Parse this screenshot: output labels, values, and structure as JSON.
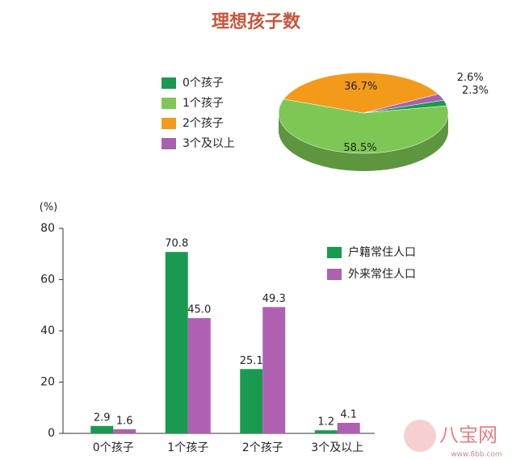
{
  "chart_data": [
    {
      "type": "pie",
      "title": "理想孩子数",
      "categories": [
        "0个孩子",
        "1个孩子",
        "2个孩子",
        "3个及以上"
      ],
      "values": [
        2.3,
        58.5,
        36.7,
        2.6
      ],
      "value_labels": [
        "2.3%",
        "58.5%",
        "36.7%",
        "2.6%"
      ],
      "colors": [
        "#1a9a50",
        "#7dc855",
        "#f39a1a",
        "#a860ac"
      ]
    },
    {
      "type": "bar",
      "y_label": "(%)",
      "categories": [
        "0个孩子",
        "1个孩子",
        "2个孩子",
        "3个及以上"
      ],
      "series": [
        {
          "name": "户籍常住人口",
          "color": "#1a9a50",
          "values": [
            2.9,
            70.8,
            25.1,
            1.2
          ],
          "value_labels": [
            "2.9",
            "70.8",
            "25.1",
            "1.2"
          ]
        },
        {
          "name": "外来常住人口",
          "color": "#b060b0",
          "values": [
            1.6,
            45.0,
            49.3,
            4.1
          ],
          "value_labels": [
            "1.6",
            "45.0",
            "49.3",
            "4.1"
          ]
        }
      ],
      "ylim": [
        0,
        80
      ],
      "yticks": [
        0,
        20,
        40,
        60,
        80
      ]
    }
  ],
  "watermark": [
    "八宝网",
    "www.8bb.com"
  ]
}
